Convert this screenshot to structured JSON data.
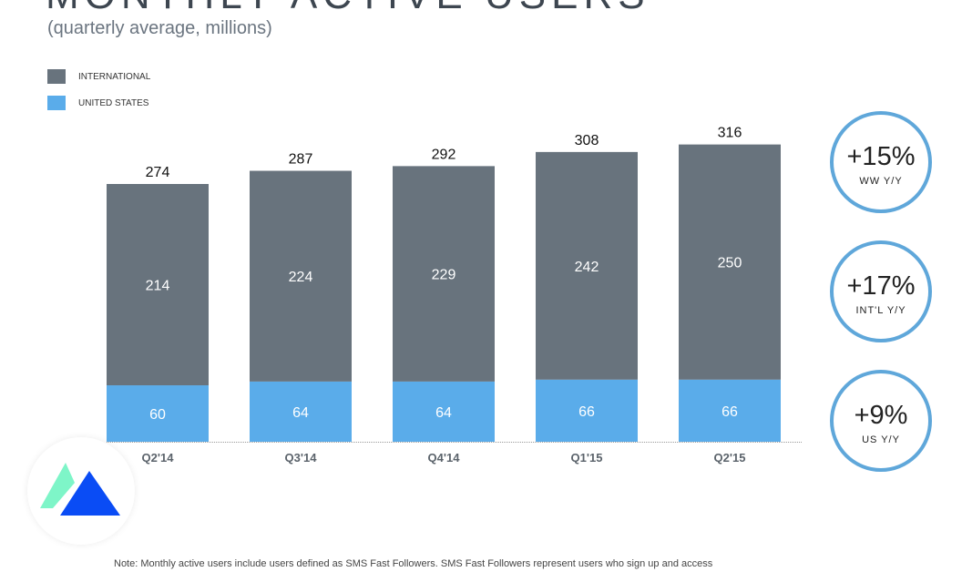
{
  "title": "MONTHLY ACTIVE USERS",
  "subtitle": "(quarterly average, millions)",
  "colors": {
    "international": "#68737d",
    "united_states": "#5aacea",
    "ring": "#5fa7da"
  },
  "chart_data": {
    "type": "bar",
    "stacked": true,
    "categories": [
      "Q2'14",
      "Q3'14",
      "Q4'14",
      "Q1'15",
      "Q2'15"
    ],
    "series": [
      {
        "name": "UNITED STATES",
        "values": [
          60,
          64,
          64,
          66,
          66
        ]
      },
      {
        "name": "INTERNATIONAL",
        "values": [
          214,
          224,
          229,
          242,
          250
        ]
      }
    ],
    "totals": [
      274,
      287,
      292,
      308,
      316
    ],
    "legend": "top-left",
    "grid": false,
    "ylim": [
      0,
      320
    ]
  },
  "callouts": [
    {
      "value": "+15%",
      "label": "WW Y/Y"
    },
    {
      "value": "+17%",
      "label": "INT'L Y/Y"
    },
    {
      "value": "+9%",
      "label": "US Y/Y"
    }
  ],
  "note": "Note: Monthly active users include users defined as SMS Fast Followers. SMS Fast Followers represent users who sign up and access"
}
